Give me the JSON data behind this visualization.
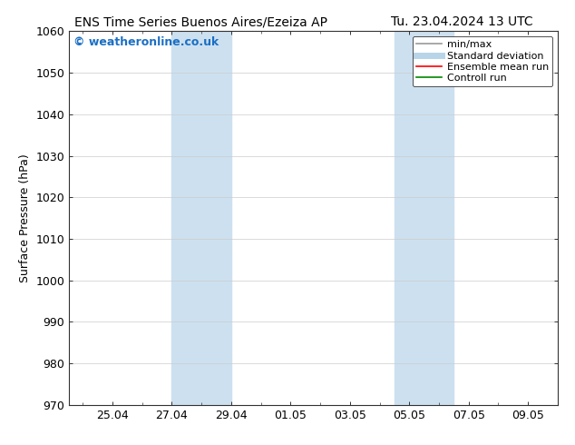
{
  "title_left": "ENS Time Series Buenos Aires/Ezeiza AP",
  "title_right": "Tu. 23.04.2024 13 UTC",
  "ylabel": "Surface Pressure (hPa)",
  "ylim": [
    970,
    1060
  ],
  "yticks": [
    970,
    980,
    990,
    1000,
    1010,
    1020,
    1030,
    1040,
    1050,
    1060
  ],
  "xtick_labels": [
    "25.04",
    "27.04",
    "29.04",
    "01.05",
    "03.05",
    "05.05",
    "07.05",
    "09.05"
  ],
  "xtick_dates": [
    "2024-04-25",
    "2024-04-27",
    "2024-04-29",
    "2024-05-01",
    "2024-05-03",
    "2024-05-05",
    "2024-05-07",
    "2024-05-09"
  ],
  "xlim_start": "2024-04-23 13:00",
  "band1_start": "2024-04-27 00:00",
  "band1_end": "2024-04-29 00:00",
  "band2_start": "2024-05-04 12:00",
  "shaded_color": "#cce0f0",
  "background_color": "#ffffff",
  "watermark_text": "© weatheronline.co.uk",
  "watermark_color": "#1a6fc4",
  "legend_items": [
    {
      "label": "min/max",
      "color": "#999999",
      "lw": 1.2
    },
    {
      "label": "Standard deviation",
      "color": "#b8d4e8",
      "lw": 5.0
    },
    {
      "label": "Ensemble mean run",
      "color": "#ff0000",
      "lw": 1.2
    },
    {
      "label": "Controll run",
      "color": "#008800",
      "lw": 1.2
    }
  ],
  "title_fontsize": 10,
  "ylabel_fontsize": 9,
  "tick_fontsize": 9,
  "watermark_fontsize": 9,
  "legend_fontsize": 8
}
